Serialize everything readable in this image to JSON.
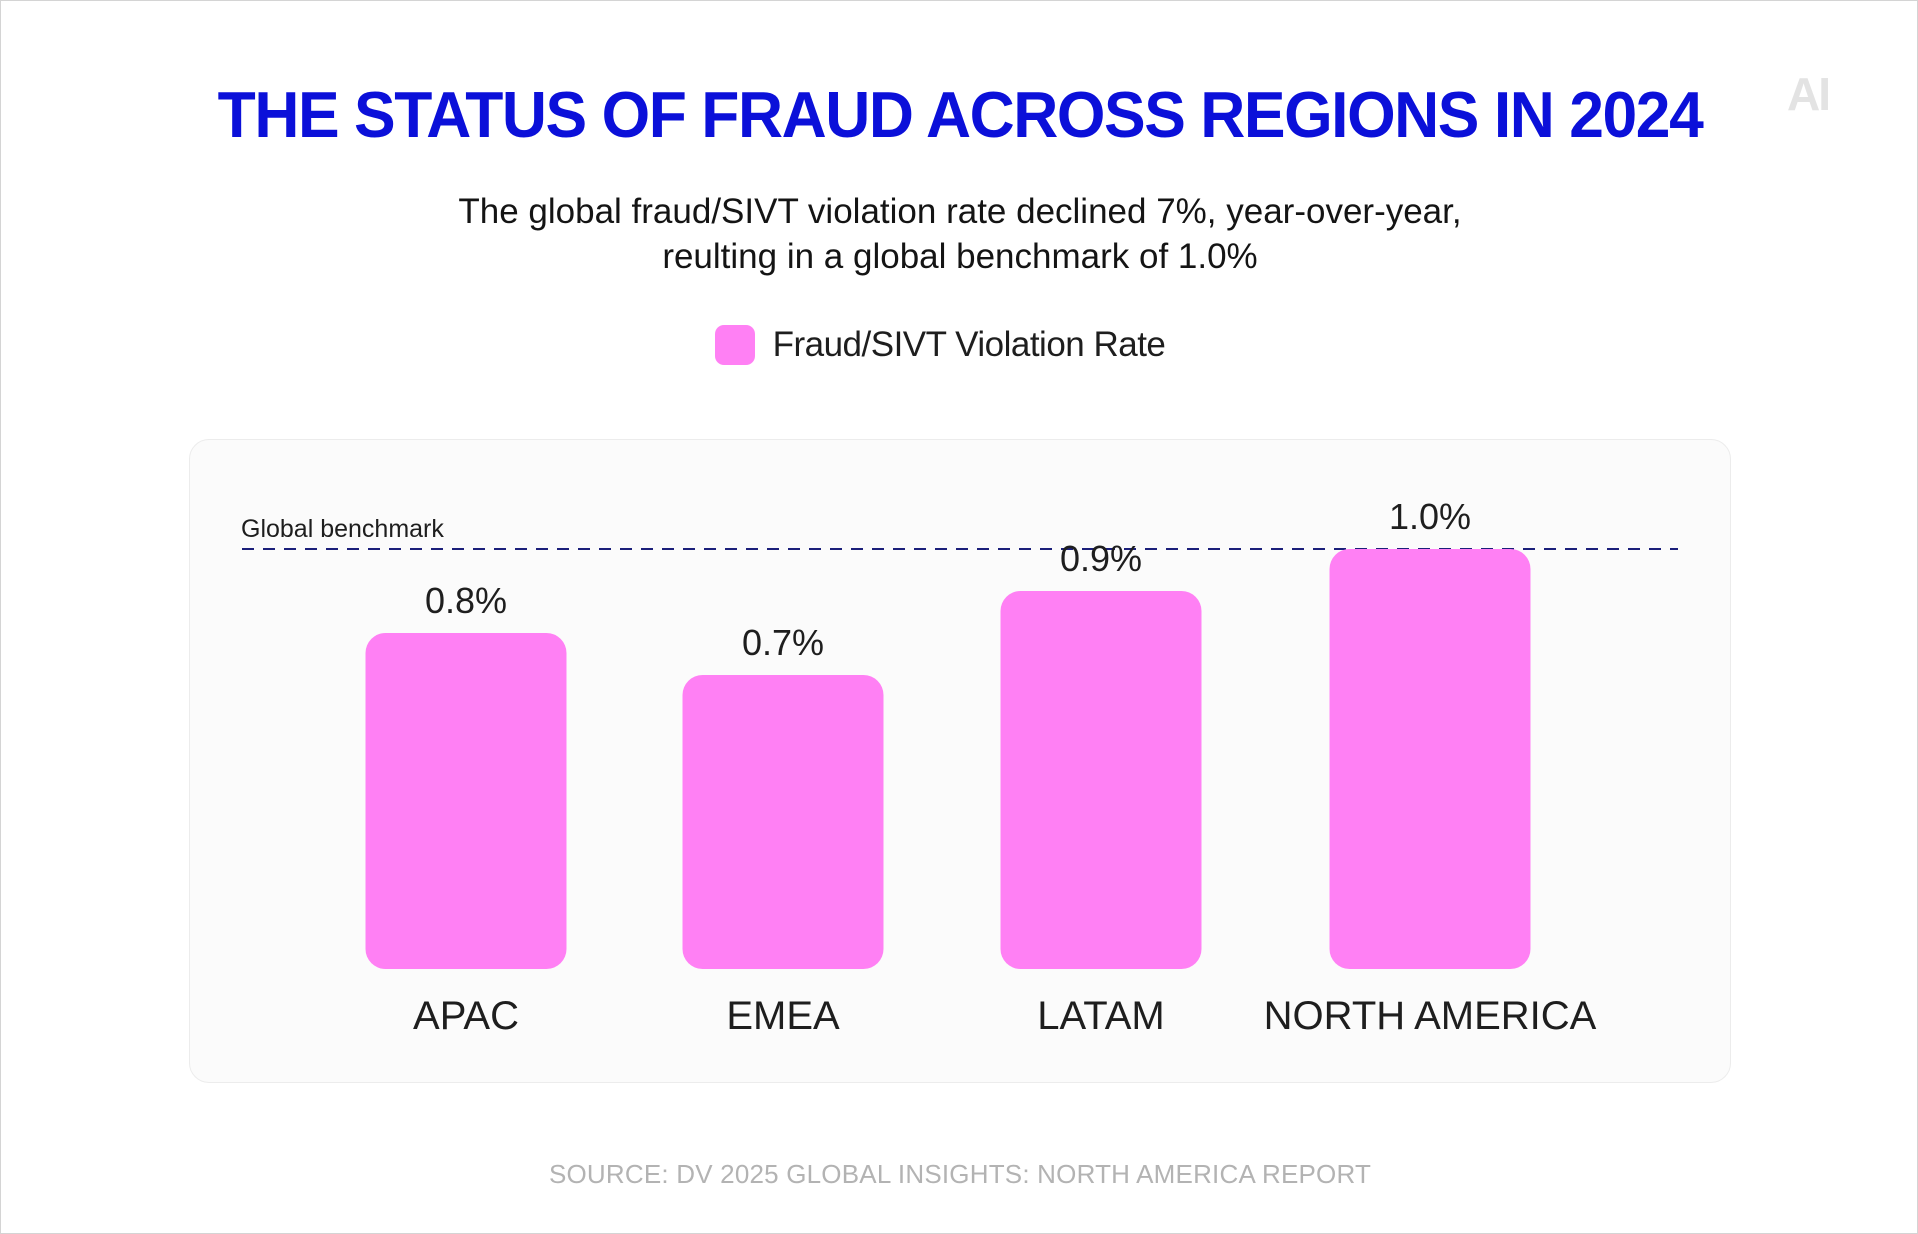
{
  "logo": "AI",
  "colors": {
    "title": "#0b10d9",
    "bar": "#ff80f4",
    "benchmark_line": "#1b1f7a"
  },
  "chart_data": {
    "type": "bar",
    "title": "THE STATUS OF FRAUD ACROSS REGIONS IN 2024",
    "subtitle_lines": [
      "The global fraud/SIVT violation rate declined 7%, year-over-year,",
      "reulting in a global benchmark of 1.0%"
    ],
    "categories": [
      "APAC",
      "EMEA",
      "LATAM",
      "NORTH AMERICA"
    ],
    "series": [
      {
        "name": "Fraud/SIVT Violation Rate",
        "values": [
          0.8,
          0.7,
          0.9,
          1.0
        ],
        "labels": [
          "0.8%",
          "0.7%",
          "0.9%",
          "1.0%"
        ]
      }
    ],
    "benchmark": {
      "label": "Global benchmark",
      "value": 1.0
    },
    "ylim": [
      0,
      1.0
    ],
    "grid": false,
    "legend_position": "top-center",
    "source": "SOURCE: DV 2025 GLOBAL INSIGHTS: NORTH AMERICA REPORT"
  }
}
